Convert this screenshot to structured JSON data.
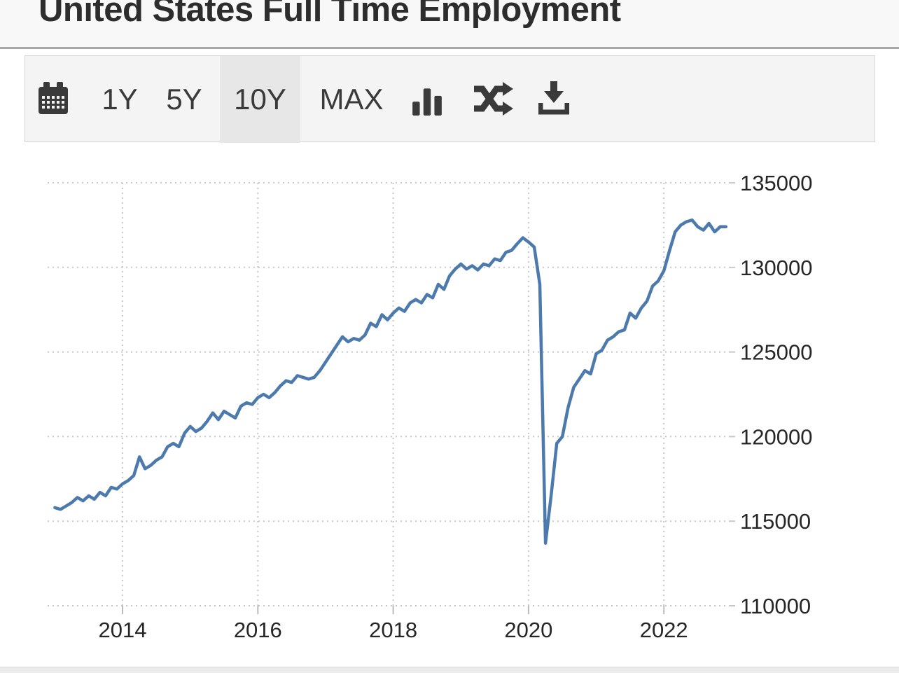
{
  "page": {
    "title": "United States Full Time Employment"
  },
  "toolbar": {
    "calendar_icon": "calendar",
    "ranges": [
      {
        "label": "1Y",
        "selected": false
      },
      {
        "label": "5Y",
        "selected": false
      },
      {
        "label": "10Y",
        "selected": true
      },
      {
        "label": "MAX",
        "selected": false
      }
    ],
    "chart_type_icon": "bar-chart",
    "compare_icon": "shuffle",
    "export_icon": "download"
  },
  "chart_data": {
    "type": "line",
    "title": "United States Full Time Employment",
    "xlabel": "",
    "ylabel": "",
    "legend": "none",
    "grid": "dotted",
    "xlim": [
      2013,
      2023
    ],
    "ylim": [
      110000,
      135000
    ],
    "x_ticks": [
      2014,
      2016,
      2018,
      2020,
      2022
    ],
    "y_ticks": [
      135000,
      130000,
      125000,
      120000,
      115000,
      110000
    ],
    "colors": {
      "line": "#4c7aac",
      "grid": "#c8c8c8",
      "axis_label": "#262626"
    },
    "series": [
      {
        "name": "Full Time Employment",
        "x_start_year": 2013,
        "interval_months": 1,
        "values": [
          115800,
          115700,
          115900,
          116100,
          116400,
          116200,
          116500,
          116300,
          116700,
          116500,
          117000,
          116900,
          117200,
          117400,
          117700,
          118800,
          118100,
          118300,
          118600,
          118800,
          119400,
          119600,
          119400,
          120200,
          120600,
          120300,
          120500,
          120900,
          121400,
          121000,
          121500,
          121300,
          121100,
          121800,
          122000,
          121900,
          122300,
          122500,
          122300,
          122600,
          123000,
          123300,
          123200,
          123600,
          123500,
          123400,
          123500,
          123900,
          124400,
          124900,
          125400,
          125900,
          125600,
          125800,
          125700,
          126000,
          126700,
          126500,
          127200,
          126900,
          127300,
          127600,
          127400,
          127900,
          128100,
          127900,
          128400,
          128200,
          129000,
          128700,
          129500,
          129900,
          130200,
          129900,
          130100,
          129850,
          130200,
          130100,
          130500,
          130400,
          130900,
          131000,
          131400,
          131750,
          131500,
          131200,
          129000,
          113700,
          116500,
          119600,
          120000,
          121700,
          122900,
          123400,
          123900,
          123700,
          124900,
          125100,
          125700,
          125900,
          126200,
          126300,
          127300,
          127000,
          127600,
          128000,
          128900,
          129200,
          129800,
          131000,
          132100,
          132500,
          132700,
          132800,
          132400,
          132200,
          132600,
          132100,
          132400,
          132400
        ]
      }
    ]
  }
}
